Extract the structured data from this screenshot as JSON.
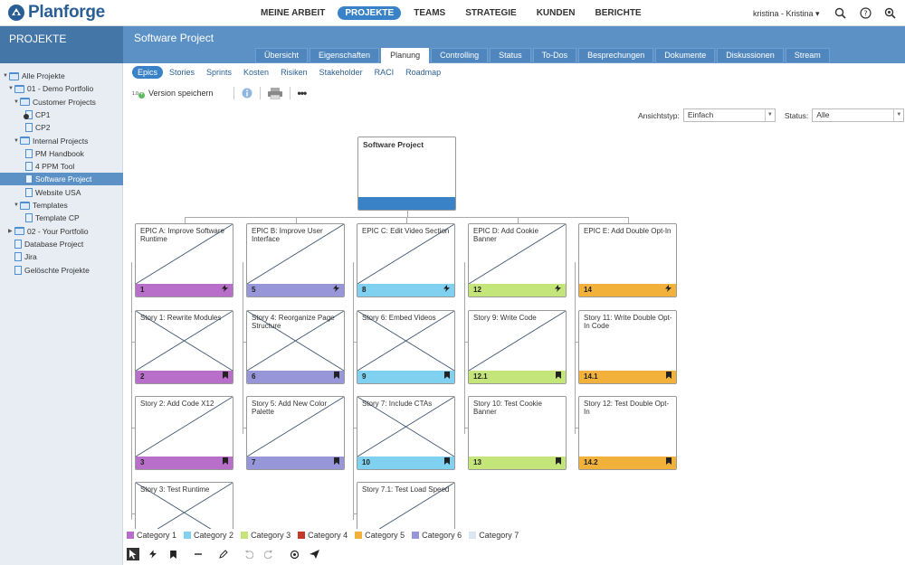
{
  "app": {
    "logo_text": "Planforge"
  },
  "main_nav": [
    "MEINE ARBEIT",
    "PROJEKTE",
    "TEAMS",
    "STRATEGIE",
    "KUNDEN",
    "BERICHTE"
  ],
  "main_nav_active": 1,
  "user": {
    "label": "kristina - Kristina ▾"
  },
  "left_header": "PROJEKTE",
  "project_title": "Software Project",
  "tabs": [
    "Übersicht",
    "Eigenschaften",
    "Planung",
    "Controlling",
    "Status",
    "To-Dos",
    "Besprechungen",
    "Dokumente",
    "Diskussionen",
    "Stream"
  ],
  "active_tab": 2,
  "tree": [
    {
      "label": "Alle Projekte",
      "level": 0,
      "icon": "folder",
      "tri": "▼"
    },
    {
      "label": "01 - Demo Portfolio",
      "level": 1,
      "icon": "folder",
      "tri": "▼"
    },
    {
      "label": "Customer Projects",
      "level": 2,
      "icon": "folder",
      "tri": "▼"
    },
    {
      "label": "CP1",
      "level": 3,
      "icon": "doc-check",
      "tri": ""
    },
    {
      "label": "CP2",
      "level": 3,
      "icon": "doc",
      "tri": ""
    },
    {
      "label": "Internal Projects",
      "level": 2,
      "icon": "folder",
      "tri": "▼"
    },
    {
      "label": "PM Handbook",
      "level": 3,
      "icon": "doc",
      "tri": ""
    },
    {
      "label": "4 PPM Tool",
      "level": 3,
      "icon": "doc",
      "tri": ""
    },
    {
      "label": "Software Project",
      "level": 3,
      "icon": "doc",
      "tri": "",
      "selected": true
    },
    {
      "label": "Website USA",
      "level": 3,
      "icon": "doc",
      "tri": ""
    },
    {
      "label": "Templates",
      "level": 2,
      "icon": "folder",
      "tri": "▼"
    },
    {
      "label": "Template CP",
      "level": 3,
      "icon": "doc",
      "tri": ""
    },
    {
      "label": "02 - Your Portfolio",
      "level": 1,
      "icon": "folder",
      "tri": "▶"
    },
    {
      "label": "Database Project",
      "level": 1,
      "icon": "doc",
      "tri": ""
    },
    {
      "label": "Jira",
      "level": 1,
      "icon": "doc",
      "tri": ""
    },
    {
      "label": "Gelöschte Projekte",
      "level": 1,
      "icon": "doc",
      "tri": ""
    }
  ],
  "subnav": [
    "Epics",
    "Stories",
    "Sprints",
    "Kosten",
    "Risiken",
    "Stakeholder",
    "RACI",
    "Roadmap"
  ],
  "subnav_active": 0,
  "toolbar": {
    "version_badge": "1.0",
    "save_version": "Version speichern"
  },
  "filters": {
    "view_label": "Ansichtstyp:",
    "view_value": "Einfach",
    "status_label": "Status:",
    "status_value": "Alle"
  },
  "colors": {
    "cat1": "#b86fc9",
    "cat2": "#7fd1ef",
    "cat3": "#c4e57a",
    "cat4": "#c0392b",
    "cat5": "#f2b13a",
    "cat6": "#9696d8",
    "cat7": "#dce6f0",
    "root": "#3a82c7"
  },
  "root_card": {
    "title": "Software Project"
  },
  "columns": [
    {
      "cards": [
        {
          "title": "EPIC A: Improve Software Runtime",
          "id": "1",
          "color": "cat1",
          "icon": "bolt",
          "cross": "single"
        },
        {
          "title": "Story 1: Rewrite Modules",
          "id": "2",
          "color": "cat1",
          "icon": "bookmark",
          "cross": "double"
        },
        {
          "title": "Story 2: Add Code X12",
          "id": "3",
          "color": "cat1",
          "icon": "bookmark",
          "cross": "single"
        },
        {
          "title": "Story 3: Test Runtime",
          "id": "",
          "color": "cat1",
          "icon": "",
          "cross": "double"
        }
      ]
    },
    {
      "cards": [
        {
          "title": "EPIC B: Improve User Interface",
          "id": "5",
          "color": "cat6",
          "icon": "bolt",
          "cross": "single"
        },
        {
          "title": "Story 4: Reorganize Page Structure",
          "id": "6",
          "color": "cat6",
          "icon": "bookmark",
          "cross": "double"
        },
        {
          "title": "Story 5: Add New Color Palette",
          "id": "7",
          "color": "cat6",
          "icon": "bookmark",
          "cross": "single"
        }
      ]
    },
    {
      "cards": [
        {
          "title": "EPIC C: Edit Video Section",
          "id": "8",
          "color": "cat2",
          "icon": "bolt",
          "cross": "single"
        },
        {
          "title": "Story 6: Embed Videos",
          "id": "9",
          "color": "cat2",
          "icon": "bookmark",
          "cross": "double"
        },
        {
          "title": "Story 7: Include CTAs",
          "id": "10",
          "color": "cat2",
          "icon": "bookmark",
          "cross": "double"
        },
        {
          "title": "Story 7.1: Test Load Speed",
          "id": "",
          "color": "cat2",
          "icon": "",
          "cross": "single"
        }
      ]
    },
    {
      "cards": [
        {
          "title": "EPIC D: Add Cookie Banner",
          "id": "12",
          "color": "cat3",
          "icon": "bolt",
          "cross": "single"
        },
        {
          "title": "Story 9: Write Code",
          "id": "12.1",
          "color": "cat3",
          "icon": "bookmark",
          "cross": "single"
        },
        {
          "title": "Story 10: Test Cookie Banner",
          "id": "13",
          "color": "cat3",
          "icon": "bookmark",
          "cross": "none"
        }
      ]
    },
    {
      "cards": [
        {
          "title": "EPIC E: Add Double Opt-In",
          "id": "14",
          "color": "cat5",
          "icon": "bolt",
          "cross": "none"
        },
        {
          "title": "Story 11: Write Double Opt-In Code",
          "id": "14.1",
          "color": "cat5",
          "icon": "bookmark",
          "cross": "none"
        },
        {
          "title": "Story 12: Test Double Opt-In",
          "id": "14.2",
          "color": "cat5",
          "icon": "bookmark",
          "cross": "none"
        }
      ]
    }
  ],
  "legend": [
    {
      "label": "Category 1",
      "color": "cat1"
    },
    {
      "label": "Category 2",
      "color": "cat2"
    },
    {
      "label": "Category 3",
      "color": "cat3"
    },
    {
      "label": "Category 4",
      "color": "cat4"
    },
    {
      "label": "Category 5",
      "color": "cat5"
    },
    {
      "label": "Category 6",
      "color": "cat6"
    },
    {
      "label": "Category 7",
      "color": "cat7"
    }
  ],
  "bottom_tools": [
    "pointer-icon",
    "bolt-icon",
    "bookmark-icon",
    "minus-icon",
    "pencil-icon",
    "undo-icon",
    "redo-icon",
    "refresh-icon",
    "send-icon"
  ]
}
